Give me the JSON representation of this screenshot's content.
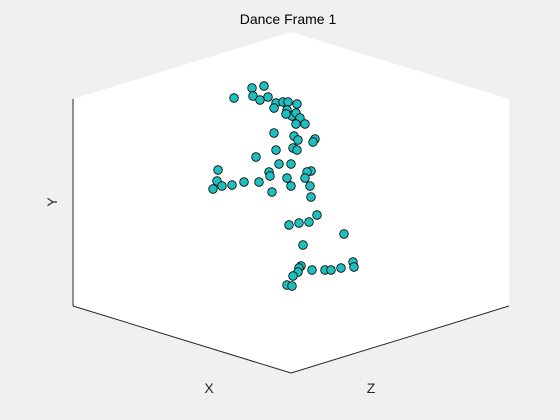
{
  "chart_data": {
    "type": "scatter",
    "title": "Dance Frame 1",
    "xlabel": "X",
    "ylabel": "Y",
    "zlabel": "Z",
    "marker": {
      "face_color": "#1fbfbf",
      "edge_color": "#000000"
    },
    "view": "3d-isometric",
    "grid": false,
    "ticks": false,
    "points_view": [
      [
        234,
        98
      ],
      [
        252,
        88
      ],
      [
        264,
        86
      ],
      [
        253,
        96
      ],
      [
        260,
        100
      ],
      [
        268,
        97
      ],
      [
        276,
        103
      ],
      [
        274,
        108
      ],
      [
        283,
        102
      ],
      [
        288,
        102
      ],
      [
        297,
        104
      ],
      [
        287,
        110
      ],
      [
        292,
        116
      ],
      [
        286,
        114
      ],
      [
        296,
        113
      ],
      [
        300,
        118
      ],
      [
        296,
        124
      ],
      [
        305,
        124
      ],
      [
        274,
        133
      ],
      [
        294,
        136
      ],
      [
        298,
        140
      ],
      [
        315,
        139
      ],
      [
        313,
        142
      ],
      [
        293,
        148
      ],
      [
        297,
        150
      ],
      [
        256,
        157
      ],
      [
        276,
        150
      ],
      [
        279,
        164
      ],
      [
        291,
        164
      ],
      [
        269,
        172
      ],
      [
        311,
        171
      ],
      [
        307,
        172
      ],
      [
        218,
        170
      ],
      [
        217,
        181
      ],
      [
        222,
        186
      ],
      [
        213,
        189
      ],
      [
        232,
        185
      ],
      [
        244,
        182
      ],
      [
        259,
        182
      ],
      [
        270,
        176
      ],
      [
        287,
        178
      ],
      [
        305,
        178
      ],
      [
        291,
        186
      ],
      [
        310,
        186
      ],
      [
        272,
        192
      ],
      [
        311,
        197
      ],
      [
        317,
        215
      ],
      [
        299,
        223
      ],
      [
        289,
        225
      ],
      [
        309,
        222
      ],
      [
        344,
        234
      ],
      [
        303,
        245
      ],
      [
        301,
        266
      ],
      [
        299,
        268
      ],
      [
        312,
        270
      ],
      [
        325,
        270
      ],
      [
        331,
        270
      ],
      [
        341,
        268
      ],
      [
        353,
        262
      ],
      [
        354,
        267
      ],
      [
        298,
        272
      ],
      [
        293,
        276
      ],
      [
        287,
        285
      ],
      [
        292,
        286
      ]
    ]
  }
}
